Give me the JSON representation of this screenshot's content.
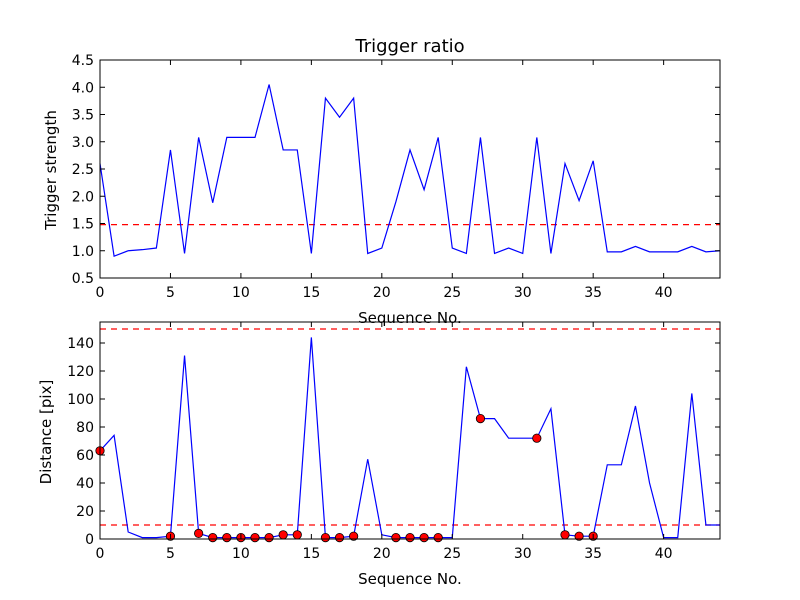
{
  "chart_data": [
    {
      "type": "line",
      "title": "Trigger ratio",
      "xlabel": "Sequence No.",
      "ylabel": "Trigger strength",
      "xlim": [
        0,
        44
      ],
      "ylim": [
        0.5,
        4.5
      ],
      "xticks": [
        0,
        5,
        10,
        15,
        20,
        25,
        30,
        35,
        40
      ],
      "yticks": [
        0.5,
        1.0,
        1.5,
        2.0,
        2.5,
        3.0,
        3.5,
        4.0,
        4.5
      ],
      "ytick_labels": [
        "0.5",
        "1.0",
        "1.5",
        "2.0",
        "2.5",
        "3.0",
        "3.5",
        "4.0",
        "4.5"
      ],
      "threshold_lines": [
        1.48
      ],
      "line_color": "#0000ff",
      "threshold_color": "#ff0000",
      "series": [
        {
          "x": [
            0,
            1,
            2,
            3,
            4,
            5,
            6,
            7,
            8,
            9,
            10,
            11,
            12,
            13,
            14,
            15,
            16,
            17,
            18,
            19,
            20,
            21,
            22,
            23,
            24,
            25,
            26,
            27,
            28,
            29,
            30,
            31,
            32,
            33,
            34,
            35,
            36,
            37,
            38,
            39,
            40,
            41,
            42,
            43,
            44
          ],
          "values": [
            2.6,
            0.9,
            1.0,
            1.02,
            1.05,
            2.85,
            0.95,
            3.08,
            1.88,
            3.08,
            3.08,
            3.08,
            4.05,
            2.85,
            2.85,
            0.95,
            3.8,
            3.45,
            3.8,
            0.95,
            1.05,
            1.9,
            2.85,
            2.12,
            3.08,
            1.05,
            0.95,
            3.08,
            0.95,
            1.05,
            0.95,
            3.08,
            0.95,
            2.6,
            1.92,
            2.65,
            0.98,
            0.98,
            1.08,
            0.98,
            0.98,
            0.98,
            1.08,
            0.98,
            1.0
          ]
        }
      ]
    },
    {
      "type": "line",
      "title": "",
      "xlabel": "Sequence No.",
      "ylabel": "Distance [pix]",
      "xlim": [
        0,
        44
      ],
      "ylim": [
        0,
        155
      ],
      "xticks": [
        0,
        5,
        10,
        15,
        20,
        25,
        30,
        35,
        40
      ],
      "yticks": [
        0,
        20,
        40,
        60,
        80,
        100,
        120,
        140
      ],
      "threshold_lines": [
        10,
        150
      ],
      "line_color": "#0000ff",
      "threshold_color": "#ff0000",
      "marker_color": "#ff0000",
      "series": [
        {
          "x": [
            0,
            1,
            2,
            3,
            4,
            5,
            6,
            7,
            8,
            9,
            10,
            11,
            12,
            13,
            14,
            15,
            16,
            17,
            18,
            19,
            20,
            21,
            22,
            23,
            24,
            25,
            26,
            27,
            28,
            29,
            30,
            31,
            32,
            33,
            34,
            35,
            36,
            37,
            38,
            39,
            40,
            41,
            42,
            43,
            44
          ],
          "values": [
            63,
            74,
            5,
            1,
            1,
            2,
            131,
            4,
            1,
            1,
            1,
            1,
            1,
            3,
            3,
            144,
            1,
            1,
            2,
            57,
            3,
            1,
            1,
            1,
            1,
            1,
            123,
            86,
            86,
            72,
            72,
            72,
            93,
            3,
            2,
            2,
            53,
            53,
            95,
            40,
            1,
            1,
            104,
            10,
            10
          ]
        }
      ],
      "markers": {
        "x": [
          0,
          5,
          7,
          8,
          9,
          10,
          11,
          12,
          13,
          14,
          16,
          17,
          18,
          21,
          22,
          23,
          24,
          27,
          31,
          33,
          34,
          35
        ],
        "values": [
          63,
          2,
          4,
          1,
          1,
          1,
          1,
          1,
          3,
          3,
          1,
          1,
          2,
          1,
          1,
          1,
          1,
          86,
          72,
          3,
          2,
          2
        ]
      }
    }
  ]
}
